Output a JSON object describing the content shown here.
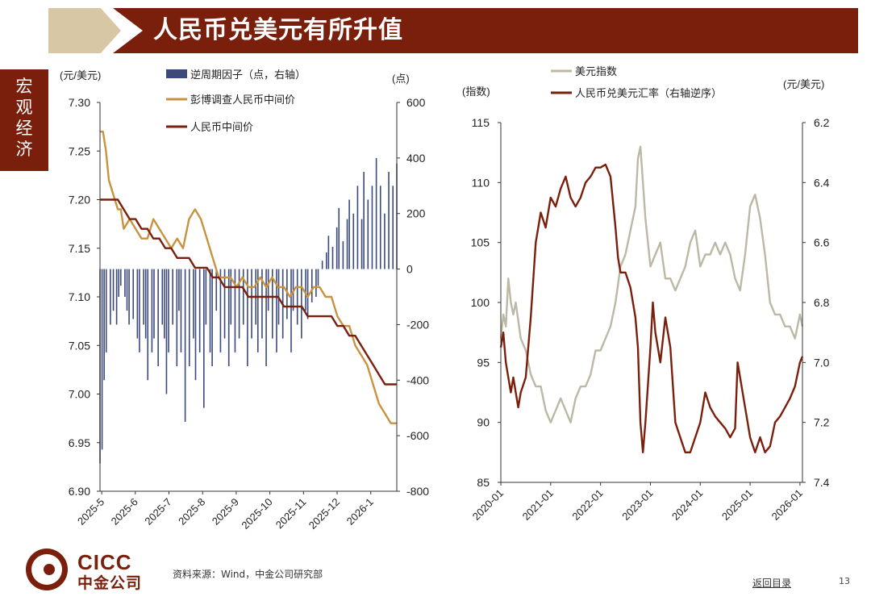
{
  "header": {
    "title": "人民币兑美元有所升值",
    "section": "宏观经济"
  },
  "colors": {
    "brand": "#7a1f0c",
    "accent": "#d8c7a4",
    "bar": "#3b4a7a",
    "gold": "#c8923f",
    "grey": "#bcb8a6",
    "navy": "#2b3a6a"
  },
  "chart_data": [
    {
      "type": "bar+line",
      "left_unit": "(元/美元)",
      "right_unit": "(点)",
      "left_axis": {
        "ticks": [
          "7.30",
          "7.25",
          "7.20",
          "7.15",
          "7.10",
          "7.05",
          "7.00",
          "6.95",
          "6.90"
        ],
        "range": [
          6.9,
          7.3
        ]
      },
      "right_axis": {
        "ticks": [
          "600",
          "400",
          "200",
          "0",
          "-200",
          "-400",
          "-600",
          "-800"
        ],
        "range": [
          -800,
          600
        ]
      },
      "x_ticks": [
        "2025-5",
        "2025-6",
        "2025-7",
        "2025-8",
        "2025-9",
        "2025-10",
        "2025-11",
        "2025-12",
        "2026-1"
      ],
      "legend": [
        "逆周期因子（点，右轴）",
        "彭博调查人民币中间价",
        "人民币中间价"
      ],
      "series": [
        {
          "name": "逆周期因子（点，右轴）",
          "type": "bar",
          "axis": "right",
          "x": [
            0,
            0.7,
            1.4,
            2.1,
            3.5,
            4.5,
            5.6,
            6.3,
            7.0,
            8.4,
            9.1,
            9.8,
            11.2,
            12.6,
            13.3,
            14.7,
            15.4,
            16.1,
            17.5,
            18.2,
            19.6,
            21.0,
            21.7,
            22.4,
            23.1,
            24.5,
            25.9,
            26.6,
            27.3,
            28.7,
            30.1,
            31.5,
            32.2,
            33.6,
            35.0,
            35.7,
            37.1,
            37.8,
            39.2,
            40.6,
            42.0,
            43.4,
            44.1,
            45.5,
            46.9,
            48.3,
            49.7,
            51.1,
            52.5,
            53.2,
            54.6,
            56.0,
            56.7,
            58.1,
            59.5,
            60.2,
            61.6,
            63.0,
            64.4,
            65.1,
            66.5,
            67.9,
            69.3,
            70.0,
            71.4,
            72.8,
            73.5,
            74.9,
            76.3,
            77.0,
            78.4,
            79.8,
            80.5,
            81.9,
            83.3,
            84.0,
            85.4,
            86.8,
            88.2,
            88.9,
            90.3,
            91.7,
            93.1,
            94.5,
            95.9,
            97.3,
            98.7,
            100.0
          ],
          "values": [
            -700,
            -650,
            -400,
            -300,
            -200,
            -150,
            -200,
            -100,
            -60,
            -100,
            -150,
            -200,
            -180,
            -250,
            -300,
            -200,
            -250,
            -400,
            -300,
            -250,
            -350,
            -200,
            -250,
            -450,
            -300,
            -200,
            -350,
            -150,
            -300,
            -550,
            -350,
            -250,
            -400,
            -300,
            -500,
            -200,
            -300,
            -350,
            -150,
            -300,
            -250,
            -350,
            -200,
            -300,
            -250,
            -200,
            -350,
            -250,
            -200,
            -300,
            -250,
            -350,
            -150,
            -250,
            -300,
            -200,
            -250,
            -180,
            -300,
            -150,
            -200,
            -250,
            -150,
            -180,
            -120,
            -100,
            -60,
            30,
            60,
            120,
            80,
            150,
            220,
            100,
            180,
            250,
            200,
            300,
            180,
            350,
            250,
            300,
            400,
            300,
            200,
            350,
            300,
            380
          ]
        },
        {
          "name": "彭博调查人民币中间价",
          "type": "line",
          "axis": "left",
          "x": [
            0,
            1,
            2,
            3,
            4,
            5,
            6,
            7,
            8,
            10,
            12,
            14,
            16,
            18,
            20,
            22,
            24,
            26,
            28,
            30,
            32,
            34,
            36,
            38,
            40,
            42,
            44,
            46,
            48,
            50,
            52,
            54,
            56,
            58,
            60,
            62,
            64,
            66,
            68,
            70,
            72,
            74,
            76,
            78,
            80,
            82,
            84,
            86,
            88,
            90,
            92,
            94,
            96,
            98,
            100
          ],
          "values": [
            7.27,
            7.27,
            7.25,
            7.22,
            7.21,
            7.2,
            7.19,
            7.19,
            7.17,
            7.18,
            7.17,
            7.16,
            7.16,
            7.18,
            7.17,
            7.16,
            7.15,
            7.16,
            7.15,
            7.18,
            7.19,
            7.18,
            7.16,
            7.14,
            7.12,
            7.12,
            7.12,
            7.11,
            7.12,
            7.11,
            7.11,
            7.12,
            7.11,
            7.12,
            7.11,
            7.11,
            7.1,
            7.11,
            7.11,
            7.1,
            7.11,
            7.11,
            7.1,
            7.1,
            7.08,
            7.07,
            7.07,
            7.05,
            7.04,
            7.03,
            7.01,
            6.99,
            6.98,
            6.97,
            6.97
          ]
        },
        {
          "name": "人民币中间价",
          "type": "line",
          "axis": "left",
          "x": [
            0,
            2,
            4,
            6,
            8,
            10,
            12,
            14,
            16,
            18,
            20,
            22,
            24,
            26,
            28,
            30,
            32,
            34,
            36,
            38,
            40,
            42,
            44,
            46,
            48,
            50,
            52,
            54,
            56,
            58,
            60,
            62,
            64,
            66,
            68,
            70,
            72,
            74,
            76,
            78,
            80,
            82,
            84,
            86,
            88,
            90,
            92,
            94,
            96,
            98,
            100
          ],
          "values": [
            7.2,
            7.2,
            7.2,
            7.2,
            7.19,
            7.18,
            7.18,
            7.17,
            7.17,
            7.16,
            7.16,
            7.15,
            7.15,
            7.14,
            7.14,
            7.14,
            7.13,
            7.13,
            7.13,
            7.12,
            7.12,
            7.11,
            7.11,
            7.11,
            7.11,
            7.1,
            7.1,
            7.1,
            7.1,
            7.1,
            7.1,
            7.09,
            7.09,
            7.09,
            7.09,
            7.08,
            7.08,
            7.08,
            7.08,
            7.08,
            7.07,
            7.07,
            7.06,
            7.06,
            7.05,
            7.04,
            7.03,
            7.02,
            7.01,
            7.01,
            7.01
          ]
        }
      ]
    },
    {
      "type": "line",
      "left_unit": "(指数)",
      "right_unit": "(元/美元)",
      "left_axis": {
        "ticks": [
          "115",
          "110",
          "105",
          "100",
          "95",
          "90",
          "85"
        ],
        "range": [
          85,
          115
        ]
      },
      "right_axis": {
        "ticks": [
          "6.2",
          "6.4",
          "6.6",
          "6.8",
          "7.0",
          "7.2",
          "7.4"
        ],
        "range": [
          6.2,
          7.4
        ],
        "inverted": true
      },
      "x_ticks": [
        "2020-01",
        "2021-01",
        "2022-01",
        "2023-01",
        "2024-01",
        "2025-01",
        "2026-01"
      ],
      "legend": [
        "美元指数",
        "人民币兑美元汇率（右轴逆序）"
      ],
      "series": [
        {
          "name": "美元指数",
          "type": "line",
          "axis": "left",
          "x": [
            2020.0,
            2020.05,
            2020.1,
            2020.15,
            2020.2,
            2020.25,
            2020.3,
            2020.4,
            2020.5,
            2020.6,
            2020.7,
            2020.8,
            2020.9,
            2021.0,
            2021.1,
            2021.2,
            2021.3,
            2021.4,
            2021.5,
            2021.6,
            2021.7,
            2021.8,
            2021.9,
            2022.0,
            2022.1,
            2022.2,
            2022.3,
            2022.4,
            2022.5,
            2022.6,
            2022.7,
            2022.75,
            2022.8,
            2022.85,
            2022.9,
            2023.0,
            2023.1,
            2023.2,
            2023.3,
            2023.4,
            2023.5,
            2023.6,
            2023.7,
            2023.8,
            2023.9,
            2024.0,
            2024.1,
            2024.2,
            2024.3,
            2024.4,
            2024.5,
            2024.6,
            2024.7,
            2024.8,
            2024.9,
            2025.0,
            2025.1,
            2025.2,
            2025.3,
            2025.4,
            2025.5,
            2025.6,
            2025.7,
            2025.8,
            2025.9,
            2026.0,
            2026.05
          ],
          "values": [
            97,
            99,
            98,
            102,
            100,
            99,
            100,
            97,
            96,
            94,
            93,
            93,
            91,
            90,
            91,
            92,
            91,
            90,
            92,
            93,
            93,
            94,
            96,
            96,
            97,
            98,
            100,
            103,
            104,
            106,
            108,
            112,
            113,
            110,
            107,
            103,
            104,
            105,
            102,
            102,
            101,
            102,
            103,
            105,
            106,
            103,
            104,
            104,
            105,
            104,
            105,
            104,
            102,
            101,
            104,
            108,
            109,
            107,
            104,
            100,
            99,
            99,
            98,
            98,
            97,
            99,
            98
          ]
        },
        {
          "name": "人民币兑美元汇率（右轴逆序）",
          "type": "line",
          "axis": "right",
          "x": [
            2020.0,
            2020.05,
            2020.1,
            2020.15,
            2020.2,
            2020.25,
            2020.3,
            2020.35,
            2020.4,
            2020.5,
            2020.6,
            2020.7,
            2020.8,
            2020.9,
            2021.0,
            2021.1,
            2021.2,
            2021.3,
            2021.4,
            2021.5,
            2021.6,
            2021.7,
            2021.8,
            2021.9,
            2022.0,
            2022.1,
            2022.2,
            2022.3,
            2022.35,
            2022.4,
            2022.5,
            2022.6,
            2022.7,
            2022.75,
            2022.8,
            2022.85,
            2022.9,
            2023.0,
            2023.05,
            2023.1,
            2023.2,
            2023.3,
            2023.4,
            2023.5,
            2023.6,
            2023.7,
            2023.8,
            2023.9,
            2024.0,
            2024.1,
            2024.2,
            2024.3,
            2024.4,
            2024.5,
            2024.6,
            2024.7,
            2024.75,
            2024.8,
            2024.9,
            2025.0,
            2025.1,
            2025.2,
            2025.3,
            2025.4,
            2025.5,
            2025.6,
            2025.7,
            2025.8,
            2025.9,
            2026.0,
            2026.05
          ],
          "values": [
            6.95,
            6.9,
            7.0,
            7.05,
            7.1,
            7.05,
            7.1,
            7.15,
            7.1,
            7.05,
            6.85,
            6.6,
            6.5,
            6.55,
            6.45,
            6.48,
            6.42,
            6.38,
            6.45,
            6.48,
            6.45,
            6.4,
            6.38,
            6.35,
            6.35,
            6.34,
            6.38,
            6.55,
            6.65,
            6.7,
            6.7,
            6.75,
            6.85,
            6.95,
            7.2,
            7.3,
            7.2,
            6.95,
            6.8,
            6.9,
            7.0,
            6.85,
            6.95,
            7.2,
            7.25,
            7.3,
            7.3,
            7.25,
            7.2,
            7.1,
            7.15,
            7.18,
            7.2,
            7.22,
            7.25,
            7.22,
            7.0,
            7.05,
            7.15,
            7.25,
            7.3,
            7.25,
            7.3,
            7.28,
            7.2,
            7.18,
            7.15,
            7.12,
            7.08,
            7.0,
            6.98
          ]
        }
      ]
    }
  ],
  "footer": {
    "logo_en": "CICC",
    "logo_cn": "中金公司",
    "source": "资料来源：Wind，中金公司研究部",
    "back_link": "返回目录",
    "page": "13"
  }
}
